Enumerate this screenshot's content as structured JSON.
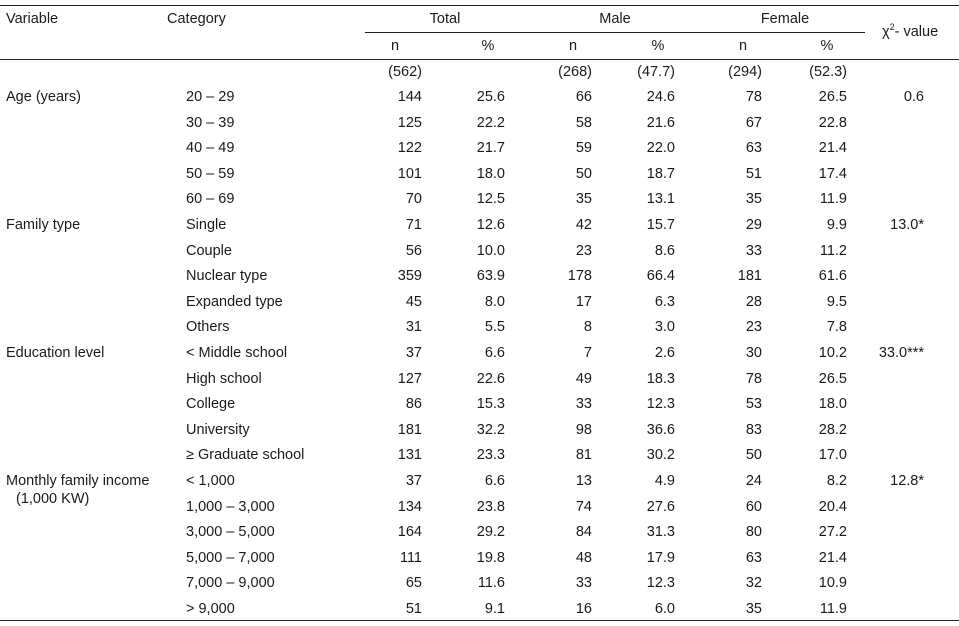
{
  "header": {
    "variable": "Variable",
    "category": "Category",
    "groups": [
      "Total",
      "Male",
      "Female"
    ],
    "n": "n",
    "pct": "%",
    "chi_prefix": "χ",
    "chi_sup": "2",
    "chi_suffix": "- value"
  },
  "totals": [
    "(562)",
    "",
    "(268)",
    "(47.7)",
    "(294)",
    "(52.3)"
  ],
  "sections": [
    {
      "variable": [
        "Age (years)"
      ],
      "chi": "0.6",
      "rows": [
        {
          "cat": "20 – 29",
          "v": [
            "144",
            "25.6",
            "66",
            "24.6",
            "78",
            "26.5"
          ]
        },
        {
          "cat": "30 – 39",
          "v": [
            "125",
            "22.2",
            "58",
            "21.6",
            "67",
            "22.8"
          ]
        },
        {
          "cat": "40 – 49",
          "v": [
            "122",
            "21.7",
            "59",
            "22.0",
            "63",
            "21.4"
          ]
        },
        {
          "cat": "50 – 59",
          "v": [
            "101",
            "18.0",
            "50",
            "18.7",
            "51",
            "17.4"
          ]
        },
        {
          "cat": "60 – 69",
          "v": [
            "70",
            "12.5",
            "35",
            "13.1",
            "35",
            "11.9"
          ]
        }
      ]
    },
    {
      "variable": [
        "Family type"
      ],
      "chi": "13.0*",
      "rows": [
        {
          "cat": "Single",
          "v": [
            "71",
            "12.6",
            "42",
            "15.7",
            "29",
            "9.9"
          ]
        },
        {
          "cat": "Couple",
          "v": [
            "56",
            "10.0",
            "23",
            "8.6",
            "33",
            "11.2"
          ]
        },
        {
          "cat": "Nuclear type",
          "v": [
            "359",
            "63.9",
            "178",
            "66.4",
            "181",
            "61.6"
          ]
        },
        {
          "cat": "Expanded type",
          "v": [
            "45",
            "8.0",
            "17",
            "6.3",
            "28",
            "9.5"
          ]
        },
        {
          "cat": "Others",
          "v": [
            "31",
            "5.5",
            "8",
            "3.0",
            "23",
            "7.8"
          ]
        }
      ]
    },
    {
      "variable": [
        "Education level"
      ],
      "chi": "33.0***",
      "rows": [
        {
          "cat": "< Middle school",
          "v": [
            "37",
            "6.6",
            "7",
            "2.6",
            "30",
            "10.2"
          ]
        },
        {
          "cat": "High school",
          "v": [
            "127",
            "22.6",
            "49",
            "18.3",
            "78",
            "26.5"
          ]
        },
        {
          "cat": "College",
          "v": [
            "86",
            "15.3",
            "33",
            "12.3",
            "53",
            "18.0"
          ]
        },
        {
          "cat": "University",
          "v": [
            "181",
            "32.2",
            "98",
            "36.6",
            "83",
            "28.2"
          ]
        },
        {
          "cat": "≥ Graduate school",
          "v": [
            "131",
            "23.3",
            "81",
            "30.2",
            "50",
            "17.0"
          ]
        }
      ]
    },
    {
      "variable": [
        "Monthly family income",
        "(1,000 KW)"
      ],
      "chi": "12.8*",
      "rows": [
        {
          "cat": "< 1,000",
          "v": [
            "37",
            "6.6",
            "13",
            "4.9",
            "24",
            "8.2"
          ]
        },
        {
          "cat": "1,000 – 3,000",
          "v": [
            "134",
            "23.8",
            "74",
            "27.6",
            "60",
            "20.4"
          ]
        },
        {
          "cat": "3,000 – 5,000",
          "v": [
            "164",
            "29.2",
            "84",
            "31.3",
            "80",
            "27.2"
          ]
        },
        {
          "cat": "5,000 – 7,000",
          "v": [
            "111",
            "19.8",
            "48",
            "17.9",
            "63",
            "21.4"
          ]
        },
        {
          "cat": "7,000 – 9,000",
          "v": [
            "65",
            "11.6",
            "33",
            "12.3",
            "32",
            "10.9"
          ]
        },
        {
          "cat": "> 9,000",
          "v": [
            "51",
            "9.1",
            "16",
            "6.0",
            "35",
            "11.9"
          ]
        }
      ]
    }
  ]
}
